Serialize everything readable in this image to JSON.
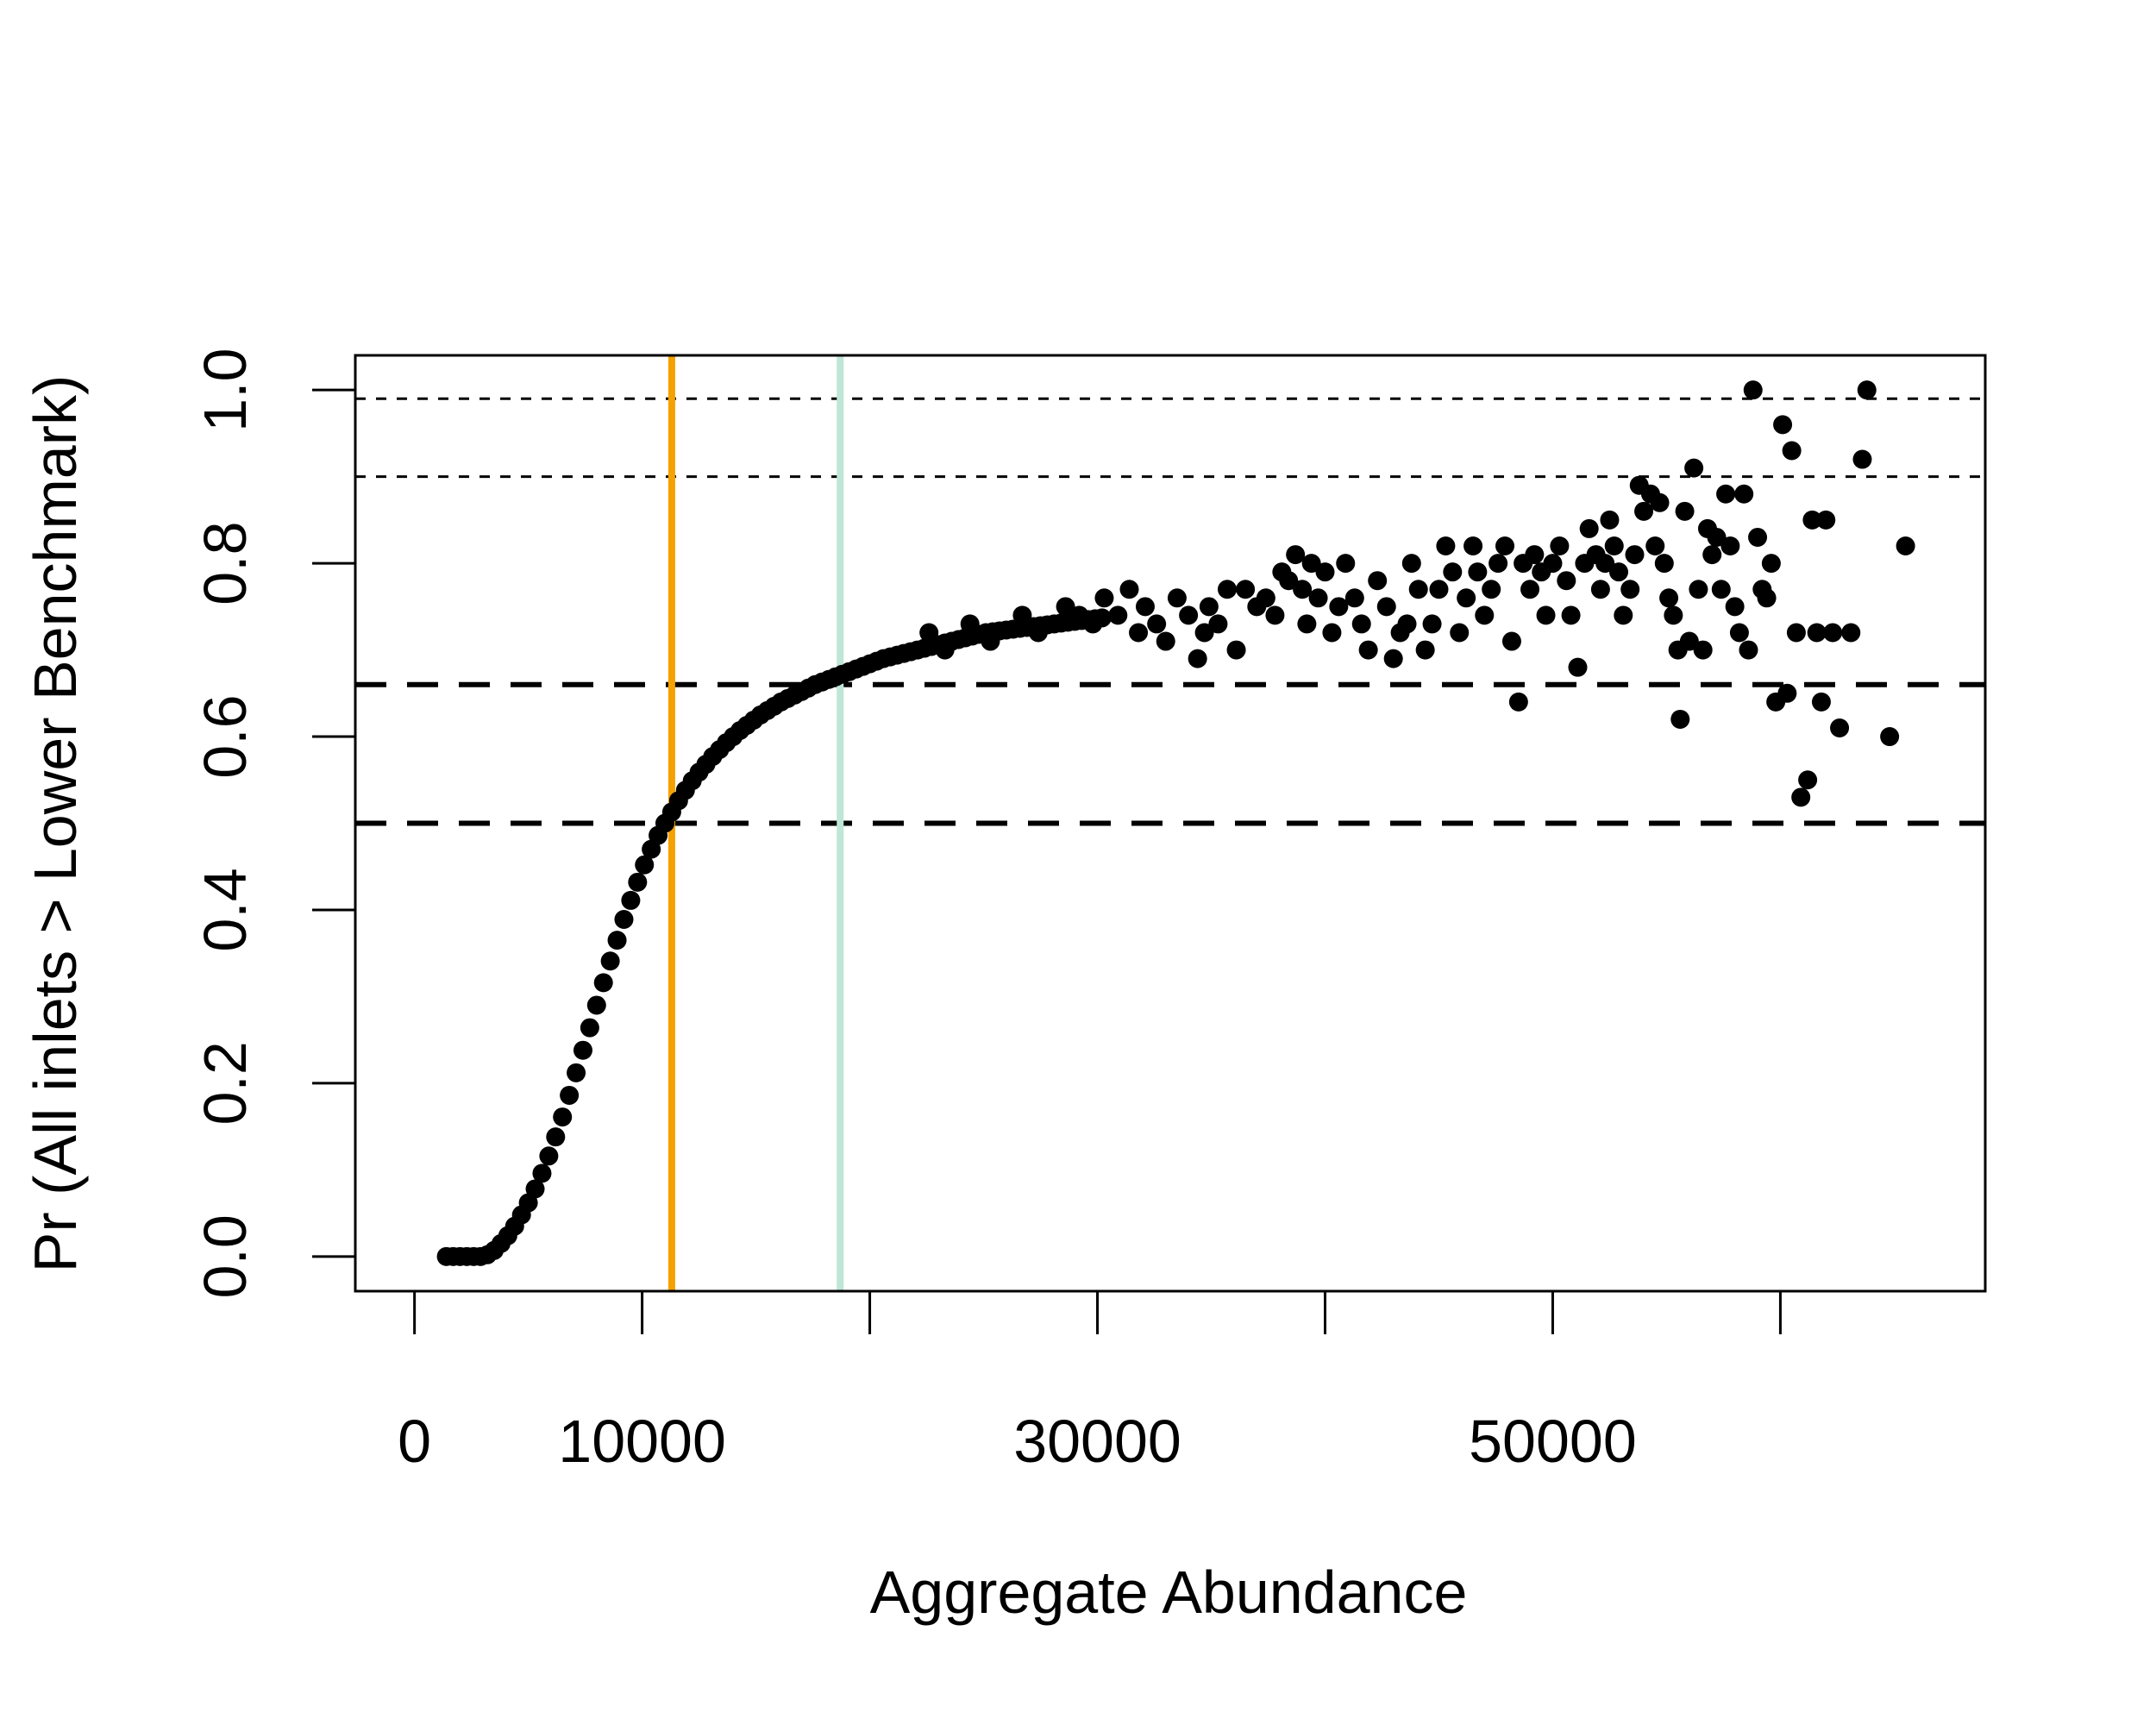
{
  "colors": {
    "points": "#000000",
    "orange_line": "#f5a100",
    "green_line": "#bfe6d6",
    "frame": "#000000"
  },
  "chart_data": {
    "type": "scatter",
    "title": "",
    "xlabel": "Aggregate Abundance",
    "ylabel": "Pr (All inlets > Lower Benchmark)",
    "xlim": [
      -2600,
      69000
    ],
    "ylim": [
      -0.04,
      1.04
    ],
    "x_ticks": [
      0,
      10000,
      20000,
      30000,
      40000,
      50000,
      60000
    ],
    "x_tick_labels": [
      "0",
      "10000",
      "",
      "30000",
      "",
      "50000",
      ""
    ],
    "y_ticks": [
      0.0,
      0.2,
      0.4,
      0.6,
      0.8,
      1.0
    ],
    "y_tick_labels": [
      "0.0",
      "0.2",
      "0.4",
      "0.6",
      "0.8",
      "1.0"
    ],
    "grid": false,
    "legend": "none",
    "vertical_lines": [
      {
        "x": 11300,
        "color": "#f5a100",
        "style": "solid"
      },
      {
        "x": 18700,
        "color": "#bfe6d6",
        "style": "solid"
      }
    ],
    "horizontal_lines": [
      {
        "y": 0.99,
        "style": "dotted"
      },
      {
        "y": 0.9,
        "style": "dotted"
      },
      {
        "y": 0.66,
        "style": "dashed"
      },
      {
        "y": 0.5,
        "style": "dashed"
      }
    ],
    "curve_points": [
      [
        1400,
        0.0
      ],
      [
        1700,
        0.0
      ],
      [
        2000,
        0.0
      ],
      [
        2300,
        0.0
      ],
      [
        2600,
        0.0
      ],
      [
        2900,
        0.0
      ],
      [
        3200,
        0.002
      ],
      [
        3500,
        0.007
      ],
      [
        3800,
        0.015
      ],
      [
        4100,
        0.024
      ],
      [
        4400,
        0.035
      ],
      [
        4700,
        0.048
      ],
      [
        5000,
        0.062
      ],
      [
        5300,
        0.078
      ],
      [
        5600,
        0.096
      ],
      [
        5900,
        0.116
      ],
      [
        6200,
        0.138
      ],
      [
        6500,
        0.161
      ],
      [
        6800,
        0.186
      ],
      [
        7100,
        0.212
      ],
      [
        7400,
        0.238
      ],
      [
        7700,
        0.264
      ],
      [
        8000,
        0.29
      ],
      [
        8300,
        0.316
      ],
      [
        8600,
        0.341
      ],
      [
        8900,
        0.365
      ],
      [
        9200,
        0.389
      ],
      [
        9500,
        0.411
      ],
      [
        9800,
        0.432
      ],
      [
        10100,
        0.452
      ],
      [
        10400,
        0.47
      ],
      [
        10700,
        0.486
      ],
      [
        11000,
        0.5
      ],
      [
        11300,
        0.513
      ],
      [
        11600,
        0.526
      ],
      [
        11900,
        0.538
      ],
      [
        12200,
        0.549
      ],
      [
        12500,
        0.559
      ],
      [
        12800,
        0.568
      ],
      [
        13100,
        0.577
      ],
      [
        13400,
        0.585
      ],
      [
        13700,
        0.593
      ],
      [
        14000,
        0.6
      ],
      [
        14300,
        0.607
      ],
      [
        14600,
        0.613
      ],
      [
        14900,
        0.619
      ],
      [
        15200,
        0.625
      ],
      [
        15500,
        0.63
      ],
      [
        15800,
        0.635
      ],
      [
        16100,
        0.64
      ],
      [
        16400,
        0.644
      ],
      [
        16700,
        0.648
      ],
      [
        17000,
        0.652
      ],
      [
        17300,
        0.656
      ],
      [
        17600,
        0.66
      ],
      [
        17900,
        0.663
      ],
      [
        18200,
        0.666
      ],
      [
        18500,
        0.669
      ],
      [
        18800,
        0.672
      ],
      [
        19100,
        0.675
      ],
      [
        19400,
        0.678
      ],
      [
        19700,
        0.681
      ],
      [
        20000,
        0.684
      ],
      [
        20300,
        0.687
      ],
      [
        20600,
        0.69
      ],
      [
        20900,
        0.692
      ],
      [
        21200,
        0.694
      ],
      [
        21500,
        0.696
      ],
      [
        21800,
        0.698
      ],
      [
        22100,
        0.7
      ],
      [
        22400,
        0.702
      ],
      [
        22700,
        0.704
      ],
      [
        23000,
        0.706
      ],
      [
        23300,
        0.708
      ],
      [
        23600,
        0.71
      ],
      [
        23900,
        0.712
      ],
      [
        24200,
        0.714
      ],
      [
        24500,
        0.716
      ],
      [
        24800,
        0.718
      ],
      [
        25100,
        0.72
      ],
      [
        25400,
        0.721
      ],
      [
        25700,
        0.722
      ],
      [
        26000,
        0.723
      ],
      [
        26300,
        0.724
      ],
      [
        26600,
        0.725
      ],
      [
        26900,
        0.726
      ],
      [
        27200,
        0.727
      ],
      [
        27500,
        0.728
      ],
      [
        27800,
        0.729
      ],
      [
        28100,
        0.73
      ],
      [
        28400,
        0.731
      ],
      [
        28700,
        0.732
      ],
      [
        29000,
        0.733
      ],
      [
        29300,
        0.734
      ],
      [
        29600,
        0.735
      ],
      [
        29900,
        0.736
      ],
      [
        30200,
        0.737
      ]
    ],
    "scatter_points": [
      [
        22600,
        0.72
      ],
      [
        23300,
        0.7
      ],
      [
        24400,
        0.73
      ],
      [
        25300,
        0.71
      ],
      [
        26700,
        0.74
      ],
      [
        27400,
        0.72
      ],
      [
        28600,
        0.75
      ],
      [
        29200,
        0.74
      ],
      [
        29800,
        0.73
      ],
      [
        30300,
        0.76
      ],
      [
        30900,
        0.74
      ],
      [
        31400,
        0.77
      ],
      [
        31800,
        0.72
      ],
      [
        32100,
        0.75
      ],
      [
        32600,
        0.73
      ],
      [
        33000,
        0.71
      ],
      [
        33500,
        0.76
      ],
      [
        34000,
        0.74
      ],
      [
        34400,
        0.69
      ],
      [
        34700,
        0.72
      ],
      [
        34900,
        0.75
      ],
      [
        35300,
        0.73
      ],
      [
        35700,
        0.77
      ],
      [
        36100,
        0.7
      ],
      [
        36500,
        0.77
      ],
      [
        37000,
        0.75
      ],
      [
        37400,
        0.76
      ],
      [
        37800,
        0.74
      ],
      [
        38100,
        0.79
      ],
      [
        38400,
        0.78
      ],
      [
        38700,
        0.81
      ],
      [
        39000,
        0.77
      ],
      [
        39200,
        0.73
      ],
      [
        39400,
        0.8
      ],
      [
        39700,
        0.76
      ],
      [
        40000,
        0.79
      ],
      [
        40300,
        0.72
      ],
      [
        40600,
        0.75
      ],
      [
        40900,
        0.8
      ],
      [
        41300,
        0.76
      ],
      [
        41600,
        0.73
      ],
      [
        41900,
        0.7
      ],
      [
        42300,
        0.78
      ],
      [
        42700,
        0.75
      ],
      [
        43000,
        0.69
      ],
      [
        43300,
        0.72
      ],
      [
        43600,
        0.73
      ],
      [
        43800,
        0.8
      ],
      [
        44100,
        0.77
      ],
      [
        44400,
        0.7
      ],
      [
        44700,
        0.73
      ],
      [
        45000,
        0.77
      ],
      [
        45300,
        0.82
      ],
      [
        45600,
        0.79
      ],
      [
        45900,
        0.72
      ],
      [
        46200,
        0.76
      ],
      [
        46500,
        0.82
      ],
      [
        46700,
        0.79
      ],
      [
        47000,
        0.74
      ],
      [
        47300,
        0.77
      ],
      [
        47600,
        0.8
      ],
      [
        47900,
        0.82
      ],
      [
        48200,
        0.71
      ],
      [
        48500,
        0.64
      ],
      [
        48700,
        0.8
      ],
      [
        49000,
        0.77
      ],
      [
        49200,
        0.81
      ],
      [
        49500,
        0.79
      ],
      [
        49700,
        0.74
      ],
      [
        50000,
        0.8
      ],
      [
        50300,
        0.82
      ],
      [
        50600,
        0.78
      ],
      [
        50800,
        0.74
      ],
      [
        51100,
        0.68
      ],
      [
        51400,
        0.8
      ],
      [
        51600,
        0.84
      ],
      [
        51900,
        0.81
      ],
      [
        52100,
        0.77
      ],
      [
        52300,
        0.8
      ],
      [
        52500,
        0.85
      ],
      [
        52700,
        0.82
      ],
      [
        52900,
        0.79
      ],
      [
        53100,
        0.74
      ],
      [
        53400,
        0.77
      ],
      [
        53600,
        0.81
      ],
      [
        53800,
        0.89
      ],
      [
        54000,
        0.86
      ],
      [
        54300,
        0.88
      ],
      [
        54500,
        0.82
      ],
      [
        54700,
        0.87
      ],
      [
        54900,
        0.8
      ],
      [
        55100,
        0.76
      ],
      [
        55300,
        0.74
      ],
      [
        55500,
        0.7
      ],
      [
        55600,
        0.62
      ],
      [
        55800,
        0.86
      ],
      [
        56000,
        0.71
      ],
      [
        56200,
        0.91
      ],
      [
        56400,
        0.77
      ],
      [
        56600,
        0.7
      ],
      [
        56800,
        0.84
      ],
      [
        57000,
        0.81
      ],
      [
        57200,
        0.83
      ],
      [
        57400,
        0.77
      ],
      [
        57600,
        0.88
      ],
      [
        57800,
        0.82
      ],
      [
        58000,
        0.75
      ],
      [
        58200,
        0.72
      ],
      [
        58400,
        0.88
      ],
      [
        58600,
        0.7
      ],
      [
        58800,
        1.0
      ],
      [
        59000,
        0.83
      ],
      [
        59200,
        0.77
      ],
      [
        59400,
        0.76
      ],
      [
        59600,
        0.8
      ],
      [
        59800,
        0.64
      ],
      [
        60100,
        0.96
      ],
      [
        60300,
        0.65
      ],
      [
        60500,
        0.93
      ],
      [
        60700,
        0.72
      ],
      [
        60900,
        0.53
      ],
      [
        61200,
        0.55
      ],
      [
        61400,
        0.85
      ],
      [
        61600,
        0.72
      ],
      [
        61800,
        0.64
      ],
      [
        62000,
        0.85
      ],
      [
        62300,
        0.72
      ],
      [
        62600,
        0.61
      ],
      [
        63100,
        0.72
      ],
      [
        63600,
        0.92
      ],
      [
        63800,
        1.0
      ],
      [
        64800,
        0.6
      ],
      [
        65500,
        0.82
      ]
    ]
  }
}
